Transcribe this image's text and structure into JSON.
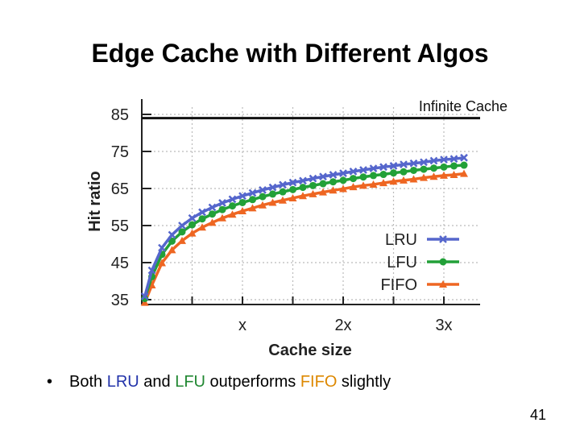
{
  "title": "Edge Cache with Different Algos",
  "bullet": {
    "prefix": "Both ",
    "lru": "LRU",
    "and": " and ",
    "lfu": "LFU",
    "mid": " outperforms ",
    "fifo": "FIFO",
    "suffix": " slightly"
  },
  "page_number": "41",
  "colors": {
    "lru": "#5566cc",
    "lfu": "#22a038",
    "fifo": "#ee6622",
    "infinite": "#111111",
    "grid": "#bbbbbb"
  },
  "chart_data": {
    "type": "line",
    "xlabel": "Cache size",
    "ylabel": "Hit ratio",
    "x_ticks": [
      1,
      2,
      3
    ],
    "x_tick_labels": [
      "x",
      "2x",
      "3x"
    ],
    "y_ticks": [
      35,
      45,
      55,
      65,
      75,
      85
    ],
    "xlim": [
      0,
      3.3
    ],
    "ylim": [
      35,
      87
    ],
    "grid": true,
    "legend_position": "bottom-right",
    "annotation": {
      "text": "Infinite Cache",
      "y": 84
    },
    "x": [
      0.03,
      0.1,
      0.2,
      0.3,
      0.4,
      0.5,
      0.6,
      0.7,
      0.8,
      0.9,
      1.0,
      1.1,
      1.2,
      1.3,
      1.4,
      1.5,
      1.6,
      1.7,
      1.8,
      1.9,
      2.0,
      2.1,
      2.2,
      2.3,
      2.4,
      2.5,
      2.6,
      2.7,
      2.8,
      2.9,
      3.0,
      3.1,
      3.2
    ],
    "series": [
      {
        "name": "LRU",
        "marker": "x",
        "values": [
          35.9,
          42.9,
          49.0,
          52.5,
          55.0,
          57.0,
          58.6,
          59.9,
          61.1,
          62.1,
          63.0,
          63.8,
          64.6,
          65.3,
          66.0,
          66.6,
          67.1,
          67.7,
          68.2,
          68.7,
          69.1,
          69.6,
          70.0,
          70.4,
          70.8,
          71.1,
          71.5,
          71.8,
          72.1,
          72.5,
          72.8,
          73.0,
          73.3
        ]
      },
      {
        "name": "LFU",
        "marker": "circle",
        "values": [
          35.3,
          41.2,
          47.2,
          50.8,
          53.3,
          55.2,
          56.8,
          58.1,
          59.3,
          60.3,
          61.2,
          62.0,
          62.8,
          63.5,
          64.1,
          64.7,
          65.3,
          65.8,
          66.3,
          66.8,
          67.2,
          67.7,
          68.1,
          68.5,
          68.8,
          69.2,
          69.5,
          69.9,
          70.2,
          70.5,
          70.8,
          71.1,
          71.3
        ]
      },
      {
        "name": "FIFO",
        "marker": "triangle",
        "values": [
          34.2,
          38.9,
          44.9,
          48.4,
          50.9,
          52.9,
          54.5,
          55.8,
          57.0,
          58.0,
          58.9,
          59.7,
          60.5,
          61.2,
          61.8,
          62.4,
          63.0,
          63.5,
          64.0,
          64.5,
          64.9,
          65.4,
          65.8,
          66.1,
          66.5,
          66.9,
          67.2,
          67.5,
          67.9,
          68.2,
          68.5,
          68.7,
          69.0
        ]
      }
    ]
  }
}
